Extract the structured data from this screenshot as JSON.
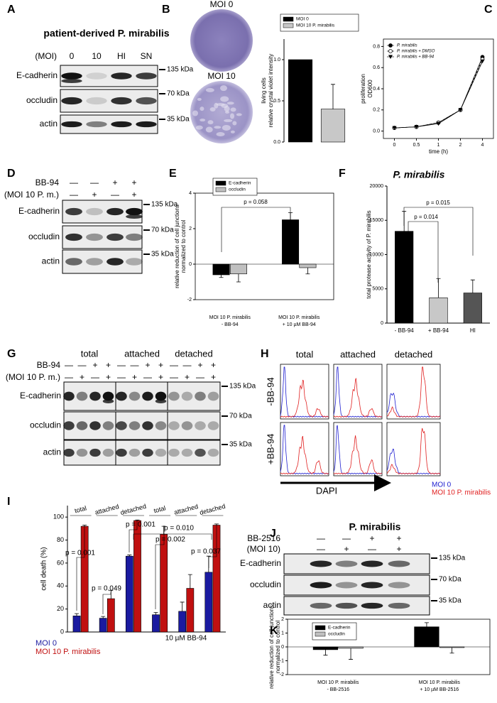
{
  "blots": [
    {
      "letter": "A",
      "title": "patient-derived P. mirabilis",
      "conditions": [
        {
          "label": "(MOI)",
          "marks": [
            "0",
            "10",
            "HI",
            "SN"
          ]
        }
      ],
      "rows": [
        {
          "label": "E-cadherin",
          "size": "135 kDa"
        },
        {
          "label": "occludin",
          "size": "70 kDa"
        },
        {
          "label": "actin",
          "size": "35 kDa"
        }
      ]
    },
    {
      "letter": "D",
      "conditions": [
        {
          "label": "BB-94",
          "marks": [
            "—",
            "—",
            "+",
            "+"
          ]
        },
        {
          "label": "(MOI 10 P. m.)",
          "marks": [
            "—",
            "+",
            "—",
            "+"
          ]
        }
      ],
      "rows": [
        {
          "label": "E-cadherin",
          "size": "135 kDa"
        },
        {
          "label": "occludin",
          "size": "70 kDa"
        },
        {
          "label": "actin",
          "size": "35 kDa"
        }
      ]
    },
    {
      "letter": "G",
      "headers": [
        "total",
        "attached",
        "detached"
      ],
      "conditions": [
        {
          "label": "BB-94",
          "marks": [
            "—",
            "—",
            "+",
            "+",
            "—",
            "—",
            "+",
            "+",
            "—",
            "—",
            "+",
            "+"
          ]
        },
        {
          "label": "(MOI 10 P. m.)",
          "marks": [
            "—",
            "+",
            "—",
            "+",
            "—",
            "+",
            "—",
            "+",
            "—",
            "+",
            "—",
            "+"
          ]
        }
      ],
      "rows": [
        {
          "label": "E-cadherin",
          "size": "135 kDa"
        },
        {
          "label": "occludin",
          "size": "70 kDa"
        },
        {
          "label": "actin",
          "size": "35 kDa"
        }
      ]
    },
    {
      "letter": "J",
      "title": "P. mirabilis",
      "conditions": [
        {
          "label": "BB-2516",
          "marks": [
            "—",
            "—",
            "+",
            "+"
          ]
        },
        {
          "label": "(MOI 10)",
          "marks": [
            "—",
            "+",
            "—",
            "+"
          ]
        }
      ],
      "rows": [
        {
          "label": "E-cadherin",
          "size": "135 kDa"
        },
        {
          "label": "occludin",
          "size": "70 kDa"
        },
        {
          "label": "actin",
          "size": "35 kDa"
        }
      ]
    }
  ],
  "plates": {
    "letter": "B",
    "labels": [
      "MOI 0",
      "MOI 10"
    ]
  },
  "flow": {
    "letter": "H",
    "columns": [
      "total",
      "attached",
      "detached"
    ],
    "rows": [
      "-BB-94",
      "+BB-94"
    ],
    "xlabel": "DAPI",
    "legend": [
      {
        "name": "MOI 0",
        "color": "#2020d0"
      },
      {
        "name": "MOI 10 P. mirabilis",
        "color": "#e02020"
      }
    ]
  },
  "chart_data": [
    {
      "type": "bar",
      "ylabel": [
        "living cells",
        "relative crystal violet intensity"
      ],
      "categories": [
        null,
        null
      ],
      "values": [
        1.0,
        0.4
      ],
      "errors": [
        null,
        0.3
      ],
      "colors": [
        "#000000",
        "#c8c8c8"
      ],
      "legend": [
        "MOI 0",
        "MOI 10 P. mirabilis"
      ],
      "legend_position": "top",
      "ylim": [
        0,
        1.25
      ],
      "yticks": [
        {
          "value": 0,
          "label": "0.0"
        },
        0.5,
        {
          "value": 1,
          "label": "1.0"
        }
      ]
    },
    {
      "type": "line",
      "letter": "C",
      "xlabel": "time (h)",
      "ylabel": [
        "proliferation",
        "OD600"
      ],
      "categories": [
        "0",
        "0.5",
        "1",
        "2",
        "4"
      ],
      "series": [
        {
          "name": "P. mirabilis",
          "color": "#000000",
          "marker": "circle",
          "values": [
            0.03,
            0.04,
            0.08,
            0.2,
            0.7
          ]
        },
        {
          "name": "P. mirabilis + DMSO",
          "color": "#000000",
          "marker": "open-circle",
          "values": [
            0.03,
            0.04,
            0.08,
            0.2,
            0.68
          ]
        },
        {
          "name": "P. mirabilis + BB-94",
          "color": "#000000",
          "marker": "triangle-down",
          "values": [
            0.03,
            0.04,
            0.07,
            0.2,
            0.66
          ]
        }
      ],
      "ylim": [
        -0.07,
        0.87
      ],
      "yticks": [
        {
          "value": 0,
          "label": "0.0"
        },
        0.2,
        0.4,
        0.6,
        0.8
      ],
      "legend_position": "top-left",
      "box": true
    },
    {
      "type": "bar",
      "letter": "E",
      "ylabel": [
        "relative reduction of cell junctions",
        "normalized to control"
      ],
      "categories": [
        [
          "MOI 10 P. mirabilis",
          "- BB-94"
        ],
        [
          "MOI 10 P. mirabilis",
          "+ 10 µM BB-94"
        ]
      ],
      "series": [
        {
          "name": "E-cadherin",
          "color": "#000000",
          "values": [
            -0.6,
            2.5
          ],
          "errors": [
            0.15,
            0.4
          ]
        },
        {
          "name": "occludin",
          "color": "#c0c0c0",
          "values": [
            -0.55,
            -0.2
          ],
          "errors": [
            0.45,
            0.35
          ]
        }
      ],
      "ylim": [
        -2,
        4
      ],
      "yticks": [
        -2,
        0,
        2,
        4
      ],
      "annotations": [
        "p = 0.058"
      ],
      "box": true,
      "zero_line": true,
      "legend_position": "top-left"
    },
    {
      "type": "bar",
      "letter": "F",
      "title": "P. mirabilis",
      "ylabel": [
        "total protease activity of P. mirabilis"
      ],
      "categories": [
        "- BB-94",
        "+ BB-94",
        "HI"
      ],
      "values": [
        13400,
        3700,
        4400
      ],
      "errors": [
        2900,
        2800,
        1900
      ],
      "colors": [
        "#000000",
        "#c8c8c8",
        "#555555"
      ],
      "ylim": [
        0,
        20000
      ],
      "yticks": [
        0,
        5000,
        10000,
        15000,
        20000
      ],
      "annotations": [
        "p = 0.015",
        "p = 0.014"
      ]
    },
    {
      "type": "bar",
      "letter": "I",
      "ylabel": [
        "cell death (%)"
      ],
      "categories": [
        "total",
        "attached",
        "detached",
        "total",
        "attached",
        "detached"
      ],
      "category_position": "top",
      "series": [
        {
          "name": "MOI 0",
          "color": "#1a1aa0",
          "values": [
            14,
            12,
            66,
            15,
            18,
            52
          ],
          "errors": [
            2,
            1.5,
            1,
            2,
            8,
            14
          ]
        },
        {
          "name": "MOI 10 P. mirabilis",
          "color": "#c01010",
          "values": [
            92,
            29,
            97,
            85,
            38,
            93
          ],
          "errors": [
            1,
            7,
            0.5,
            7,
            12,
            1
          ]
        }
      ],
      "ylim": [
        0,
        110
      ],
      "yticks": [
        0,
        20,
        40,
        60,
        80,
        100
      ],
      "annotations": [
        "p = 0.001",
        "p = 0.049",
        "p = 0.001",
        "p = 0.002",
        "p = 0.010",
        "p = 0.037",
        "10 µM BB-94"
      ],
      "legend_position": "bottom-left"
    },
    {
      "type": "bar",
      "letter": "K",
      "ylabel": [
        "relative reduction of cell junctions",
        "normalized to control"
      ],
      "categories": [
        [
          "MOI 10 P. mirabilis",
          "- BB-2516"
        ],
        [
          "MOI 10 P. mirabilis",
          "+ 10 µM BB-2516"
        ]
      ],
      "series": [
        {
          "name": "E-cadherin",
          "color": "#000000",
          "values": [
            -0.2,
            1.45
          ],
          "errors": [
            0.4,
            0.3
          ]
        },
        {
          "name": "occludin",
          "color": "#c0c0c0",
          "values": [
            -0.1,
            -0.05
          ],
          "errors": [
            0.8,
            0.4
          ]
        }
      ],
      "ylim": [
        -2,
        2
      ],
      "yticks": [
        -2,
        -1,
        0,
        1,
        2
      ],
      "box": true,
      "zero_line": true,
      "legend_position": "top-left"
    }
  ]
}
